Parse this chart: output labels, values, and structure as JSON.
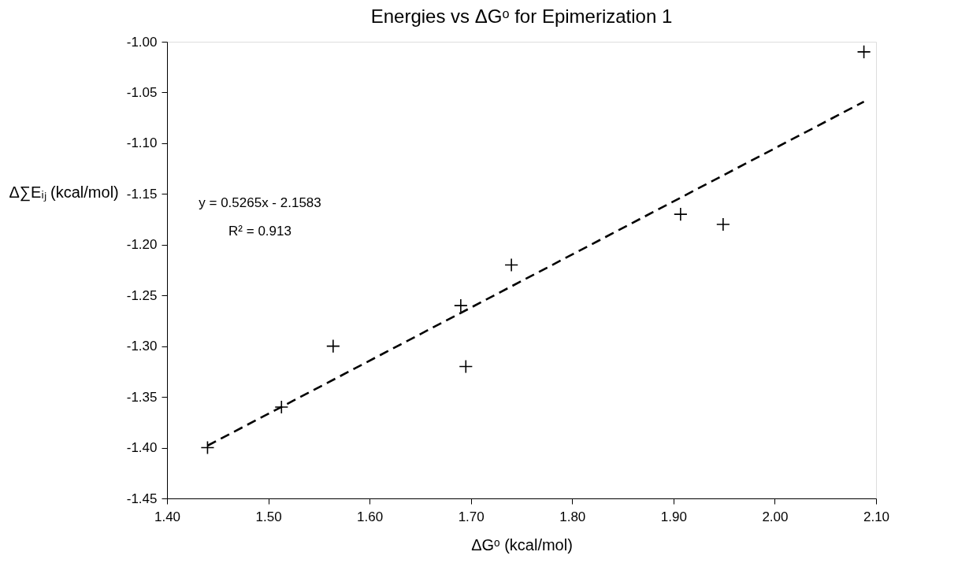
{
  "chart_data": {
    "type": "scatter",
    "title": "Energies vs ΔGᵒ for Epimerization 1",
    "xlabel": "ΔGᵒ (kcal/mol)",
    "ylabel": "Δ∑Eᵢⱼ (kcal/mol)",
    "xlim": [
      1.4,
      2.1
    ],
    "xticks": [
      {
        "value": 1.4,
        "label": "1.40"
      },
      {
        "value": 1.5,
        "label": "1.50"
      },
      {
        "value": 1.6,
        "label": "1.60"
      },
      {
        "value": 1.7,
        "label": "1.70"
      },
      {
        "value": 1.8,
        "label": "1.80"
      },
      {
        "value": 1.9,
        "label": "1.90"
      },
      {
        "value": 2.0,
        "label": "2.00"
      },
      {
        "value": 2.1,
        "label": "2.10"
      }
    ],
    "ylim": [
      -1.45,
      -1.0
    ],
    "yticks": [
      {
        "value": -1.45,
        "label": "-1.45"
      },
      {
        "value": -1.4,
        "label": "-1.40"
      },
      {
        "value": -1.35,
        "label": "-1.35"
      },
      {
        "value": -1.3,
        "label": "-1.30"
      },
      {
        "value": -1.25,
        "label": "-1.25"
      },
      {
        "value": -1.2,
        "label": "-1.20"
      },
      {
        "value": -1.15,
        "label": "-1.15"
      },
      {
        "value": -1.1,
        "label": "-1.10"
      },
      {
        "value": -1.05,
        "label": "-1.05"
      },
      {
        "value": -1.0,
        "label": "-1.00"
      }
    ],
    "grid": false,
    "annotations": [
      "y = 0.5265x - 2.1583",
      "R² = 0.913"
    ],
    "series": [
      {
        "color": "#000000",
        "marker": "cross",
        "x": [
          1.44,
          1.513,
          1.564,
          1.69,
          1.695,
          1.74,
          1.907,
          1.949,
          2.088
        ],
        "values": [
          -1.4,
          -1.36,
          -1.3,
          -1.26,
          -1.32,
          -1.22,
          -1.17,
          -1.18,
          -1.01
        ]
      },
      {
        "type": "line",
        "color": "#000000",
        "line_style": "dashed",
        "x": [
          1.44,
          2.088
        ],
        "values": [
          -1.398,
          -1.059
        ]
      }
    ]
  }
}
